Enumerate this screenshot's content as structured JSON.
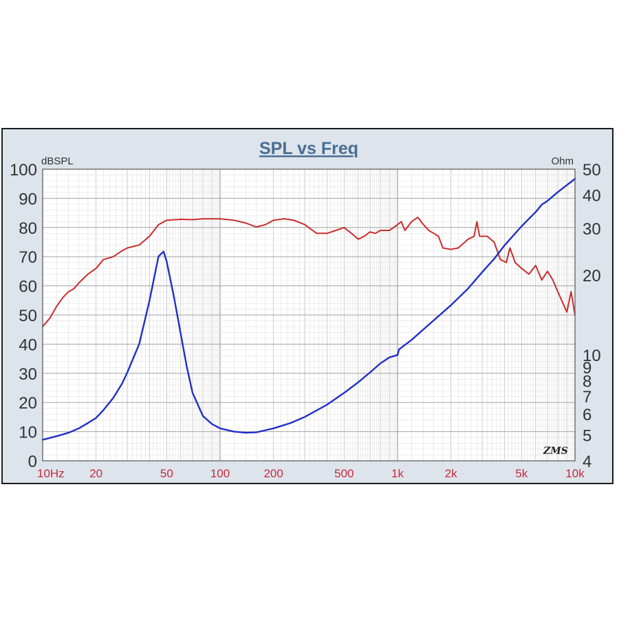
{
  "chart_data": {
    "type": "line",
    "title": "SPL vs Freq",
    "y_left_unit": "dBSPL",
    "y_right_unit": "Ohm",
    "x_scale": "log",
    "xlim": [
      10,
      10000
    ],
    "ylim_left": [
      0,
      100
    ],
    "ylim_right": [
      4,
      50
    ],
    "y_right_scale": "log",
    "grid": true,
    "x_ticks": [
      {
        "value": 10,
        "label": "10Hz"
      },
      {
        "value": 20,
        "label": "20"
      },
      {
        "value": 50,
        "label": "50"
      },
      {
        "value": 100,
        "label": "100"
      },
      {
        "value": 200,
        "label": "200"
      },
      {
        "value": 500,
        "label": "500"
      },
      {
        "value": 1000,
        "label": "1k"
      },
      {
        "value": 2000,
        "label": "2k"
      },
      {
        "value": 5000,
        "label": "5k"
      },
      {
        "value": 10000,
        "label": "10k"
      }
    ],
    "y_left_ticks": [
      "0",
      "10",
      "20",
      "30",
      "40",
      "50",
      "60",
      "70",
      "80",
      "90",
      "100"
    ],
    "y_right_ticks": [
      {
        "value": 4,
        "label": "4"
      },
      {
        "value": 5,
        "label": "5"
      },
      {
        "value": 6,
        "label": "6"
      },
      {
        "value": 7,
        "label": "7"
      },
      {
        "value": 8,
        "label": "8"
      },
      {
        "value": 9,
        "label": "9"
      },
      {
        "value": 10,
        "label": "10"
      },
      {
        "value": 20,
        "label": "20"
      },
      {
        "value": 30,
        "label": "30"
      },
      {
        "value": 40,
        "label": "40"
      },
      {
        "value": 50,
        "label": "50"
      }
    ],
    "series": [
      {
        "axis": "left",
        "color": "#cc2b2b",
        "points": [
          [
            10,
            46
          ],
          [
            11,
            49
          ],
          [
            12,
            53
          ],
          [
            13,
            56
          ],
          [
            14,
            58
          ],
          [
            15,
            59
          ],
          [
            16,
            61
          ],
          [
            18,
            64
          ],
          [
            20,
            66
          ],
          [
            22,
            69
          ],
          [
            25,
            70
          ],
          [
            28,
            72
          ],
          [
            30,
            73
          ],
          [
            35,
            74
          ],
          [
            40,
            77
          ],
          [
            45,
            81
          ],
          [
            50,
            82.5
          ],
          [
            60,
            82.8
          ],
          [
            70,
            82.7
          ],
          [
            80,
            83
          ],
          [
            100,
            83
          ],
          [
            120,
            82.5
          ],
          [
            140,
            81.5
          ],
          [
            160,
            80.2
          ],
          [
            180,
            81
          ],
          [
            200,
            82.5
          ],
          [
            230,
            83
          ],
          [
            260,
            82.5
          ],
          [
            300,
            81
          ],
          [
            350,
            78
          ],
          [
            400,
            78
          ],
          [
            450,
            79
          ],
          [
            500,
            80
          ],
          [
            550,
            78
          ],
          [
            600,
            76
          ],
          [
            650,
            77
          ],
          [
            700,
            78.5
          ],
          [
            750,
            78
          ],
          [
            800,
            79
          ],
          [
            900,
            79
          ],
          [
            950,
            80
          ],
          [
            1000,
            81
          ],
          [
            1050,
            82
          ],
          [
            1100,
            79
          ],
          [
            1200,
            82
          ],
          [
            1300,
            83.5
          ],
          [
            1400,
            81
          ],
          [
            1500,
            79
          ],
          [
            1600,
            78
          ],
          [
            1700,
            77
          ],
          [
            1800,
            73
          ],
          [
            2000,
            72.5
          ],
          [
            2200,
            73
          ],
          [
            2500,
            76
          ],
          [
            2700,
            77
          ],
          [
            2800,
            82
          ],
          [
            2900,
            77
          ],
          [
            3200,
            77
          ],
          [
            3500,
            75
          ],
          [
            3800,
            69
          ],
          [
            4100,
            68
          ],
          [
            4300,
            73
          ],
          [
            4600,
            68
          ],
          [
            5000,
            66
          ],
          [
            5500,
            64
          ],
          [
            6000,
            67
          ],
          [
            6500,
            62
          ],
          [
            7000,
            65
          ],
          [
            7500,
            62
          ],
          [
            8000,
            58
          ],
          [
            9000,
            51
          ],
          [
            9500,
            58
          ],
          [
            10000,
            50
          ]
        ]
      },
      {
        "axis": "right",
        "color": "#1f2fc8",
        "points": [
          [
            10,
            4.8
          ],
          [
            12,
            4.95
          ],
          [
            14,
            5.1
          ],
          [
            16,
            5.3
          ],
          [
            18,
            5.55
          ],
          [
            20,
            5.8
          ],
          [
            22,
            6.2
          ],
          [
            25,
            6.9
          ],
          [
            28,
            7.8
          ],
          [
            30,
            8.6
          ],
          [
            35,
            11
          ],
          [
            40,
            16
          ],
          [
            45,
            23.5
          ],
          [
            48,
            24.5
          ],
          [
            50,
            22.5
          ],
          [
            55,
            16.5
          ],
          [
            60,
            12
          ],
          [
            65,
            9
          ],
          [
            70,
            7.2
          ],
          [
            80,
            5.9
          ],
          [
            90,
            5.5
          ],
          [
            100,
            5.3
          ],
          [
            120,
            5.15
          ],
          [
            140,
            5.1
          ],
          [
            160,
            5.12
          ],
          [
            200,
            5.3
          ],
          [
            250,
            5.55
          ],
          [
            300,
            5.85
          ],
          [
            400,
            6.5
          ],
          [
            500,
            7.2
          ],
          [
            600,
            7.9
          ],
          [
            700,
            8.6
          ],
          [
            800,
            9.3
          ],
          [
            900,
            9.8
          ],
          [
            1000,
            10
          ],
          [
            1020,
            10.5
          ],
          [
            1200,
            11.4
          ],
          [
            1500,
            13
          ],
          [
            2000,
            15.4
          ],
          [
            2500,
            17.8
          ],
          [
            3000,
            20.5
          ],
          [
            3500,
            23
          ],
          [
            4000,
            25.8
          ],
          [
            5000,
            30.5
          ],
          [
            6000,
            34.5
          ],
          [
            6500,
            36.8
          ],
          [
            7000,
            38
          ],
          [
            8000,
            41
          ],
          [
            10000,
            46
          ]
        ]
      }
    ],
    "annotation": "ZMS"
  }
}
